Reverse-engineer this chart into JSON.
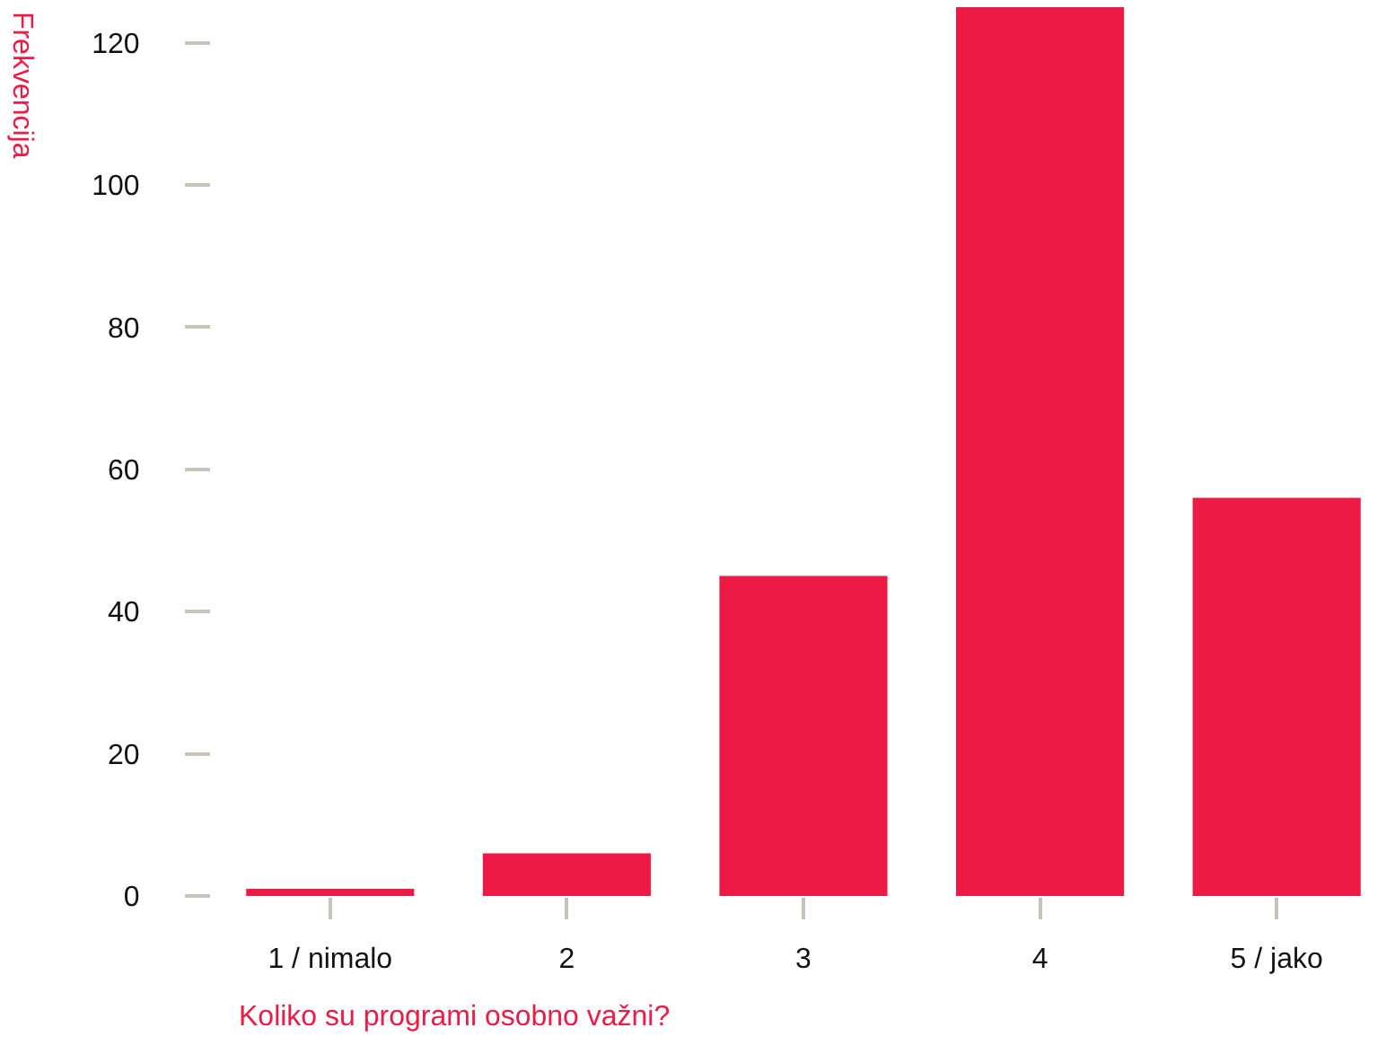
{
  "chart_data": {
    "type": "bar",
    "xlabel": "Koliko su programi osobno važni?",
    "ylabel": "Frekvencija",
    "categories": [
      "1 / nimalo",
      "2",
      "3",
      "4",
      "5 / jako"
    ],
    "values": [
      1,
      6,
      45,
      125,
      56
    ],
    "color": "#ee1a46",
    "ylim": [
      0,
      125
    ],
    "yticks": [
      0,
      20,
      40,
      60,
      80,
      100,
      120
    ],
    "grid": false
  }
}
